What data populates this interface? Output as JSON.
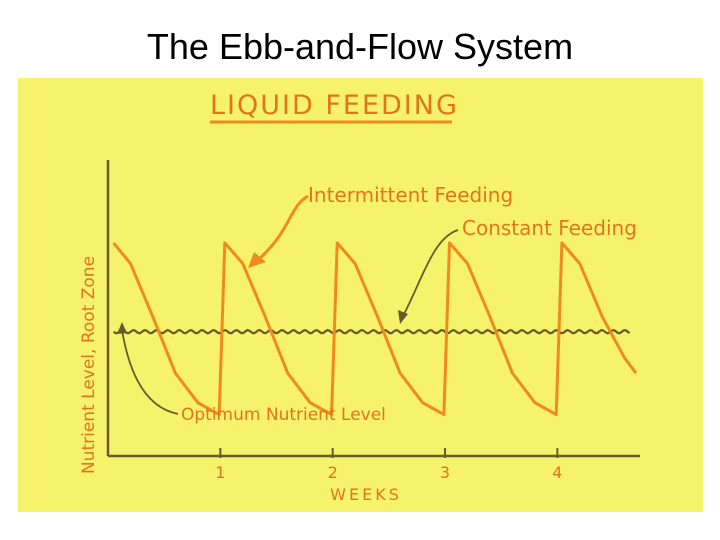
{
  "slide": {
    "title": "The Ebb-and-Flow System"
  },
  "colors": {
    "panel_background": "#f7f26b",
    "curve": "#f08a1c",
    "lettering": "#e0761a",
    "axis_and_annotations": "#6a5a2a",
    "title_underline": "#f08a1c"
  },
  "chart_data": {
    "type": "line",
    "title": "LIQUID FEEDING",
    "xlabel": "WEEKS",
    "ylabel": "Nutrient Level, Root Zone",
    "x_ticks": [
      1,
      2,
      3,
      4
    ],
    "xlim": [
      0,
      4.7
    ],
    "ylim": [
      0,
      1
    ],
    "grid": false,
    "series": [
      {
        "name": "Intermittent Feeding",
        "points": [
          [
            0.05,
            0.72
          ],
          [
            0.2,
            0.65
          ],
          [
            0.4,
            0.47
          ],
          [
            0.6,
            0.28
          ],
          [
            0.8,
            0.18
          ],
          [
            0.99,
            0.14
          ],
          [
            1.04,
            0.72
          ],
          [
            1.2,
            0.65
          ],
          [
            1.4,
            0.47
          ],
          [
            1.6,
            0.28
          ],
          [
            1.8,
            0.18
          ],
          [
            1.99,
            0.14
          ],
          [
            2.04,
            0.72
          ],
          [
            2.2,
            0.65
          ],
          [
            2.4,
            0.47
          ],
          [
            2.6,
            0.28
          ],
          [
            2.8,
            0.18
          ],
          [
            2.99,
            0.14
          ],
          [
            3.04,
            0.72
          ],
          [
            3.2,
            0.65
          ],
          [
            3.4,
            0.47
          ],
          [
            3.6,
            0.28
          ],
          [
            3.8,
            0.18
          ],
          [
            3.99,
            0.14
          ],
          [
            4.04,
            0.72
          ],
          [
            4.2,
            0.65
          ],
          [
            4.4,
            0.47
          ],
          [
            4.6,
            0.33
          ],
          [
            4.7,
            0.28
          ]
        ]
      },
      {
        "name": "Constant Feeding",
        "constant_y": 0.42,
        "x_range": [
          0.05,
          4.65
        ]
      }
    ],
    "annotations": [
      {
        "text": "Intermittent Feeding",
        "points_to": "intermittent-curve"
      },
      {
        "text": "Constant Feeding",
        "points_to": "constant-line"
      },
      {
        "text": "Optimum Nutrient Level",
        "points_to": "constant-line-start"
      }
    ]
  }
}
